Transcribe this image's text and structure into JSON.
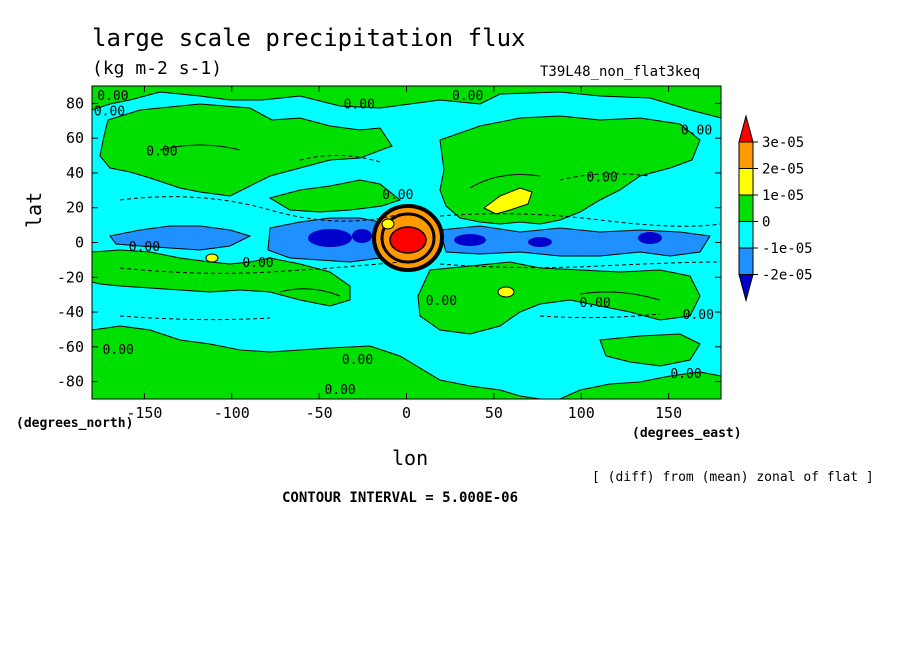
{
  "chart_data": {
    "type": "heatmap",
    "title": "large scale precipitation flux",
    "units": "(kg m-2 s-1)",
    "run_name": "T39L48_non_flat3keq",
    "xlabel": "lon",
    "ylabel": "lat",
    "x_unit_label": "(degrees_east)",
    "y_unit_label": "(degrees_north)",
    "xlim": [
      -180,
      180
    ],
    "ylim": [
      -90,
      90
    ],
    "x_ticks": [
      -150,
      -100,
      -50,
      0,
      50,
      100,
      150
    ],
    "y_ticks": [
      80,
      60,
      40,
      20,
      0,
      -20,
      -40,
      -60,
      -80
    ],
    "contour_interval_text": "CONTOUR INTERVAL = 5.000E-06",
    "note": "[ (diff) from (mean) zonal of flat ]",
    "colorbar": {
      "levels": [
        "3e-05",
        "2e-05",
        "1e-05",
        "0",
        "-1e-05",
        "-2e-05"
      ],
      "colors": [
        "#ff0000",
        "#ff9900",
        "#ffff00",
        "#00e000",
        "#00ffff",
        "#1e90ff",
        "#0000cc"
      ]
    },
    "contour_labels": [
      "0.00",
      "0.00",
      "0.00",
      "0.00",
      "0.00",
      "0.00",
      "0.00",
      "0.00",
      "0.00",
      "0.00",
      "0.00",
      "0.00",
      "0.00",
      "0.00",
      "0.00",
      "0.00",
      "0.00"
    ],
    "features": [
      {
        "lon": 0,
        "lat": 0,
        "value": "3e-05"
      },
      {
        "lon": 60,
        "lat": 20,
        "value": "1e-05"
      },
      {
        "lon": 55,
        "lat": -25,
        "value": "1e-05"
      },
      {
        "lon": -115,
        "lat": -10,
        "value": "1e-05"
      }
    ]
  }
}
